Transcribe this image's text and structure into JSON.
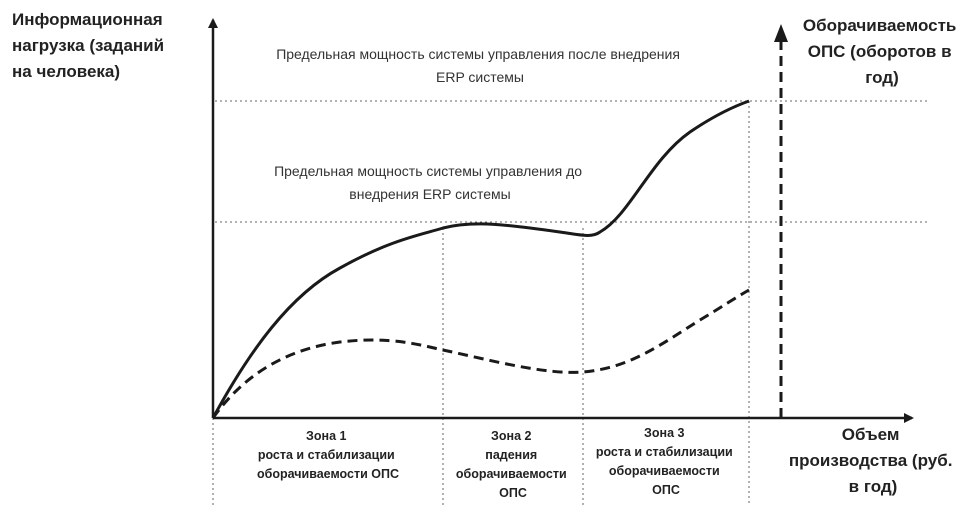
{
  "y_axis_title": [
    "Информационная",
    "нагрузка  (заданий",
    "на человека)"
  ],
  "right_axis_title": [
    "Оборачиваемость",
    "ОПС (оборотов  в",
    "год)"
  ],
  "x_axis_title": [
    "Объем",
    "производства  (руб.",
    "в год)"
  ],
  "level_after": {
    "lines": [
      "Предельная мощность системы управления после внедрения",
      "ERP системы"
    ]
  },
  "level_before": {
    "lines": [
      "Предельная мощность системы управления до",
      "внедрения ERP системы"
    ]
  },
  "zones": [
    {
      "title": "Зона 1",
      "lines": [
        "роста и стабилизации",
        "оборачиваемости ОПС"
      ]
    },
    {
      "title": "Зона 2",
      "lines": [
        "падения",
        "оборачиваемости",
        "ОПС"
      ]
    },
    {
      "title": "Зона 3",
      "lines": [
        "роста и стабилизации",
        "оборачиваемости",
        "ОПС"
      ]
    }
  ],
  "colors": {
    "ink": "#1a1a1a",
    "guide": "#666666",
    "text": "#222222"
  }
}
